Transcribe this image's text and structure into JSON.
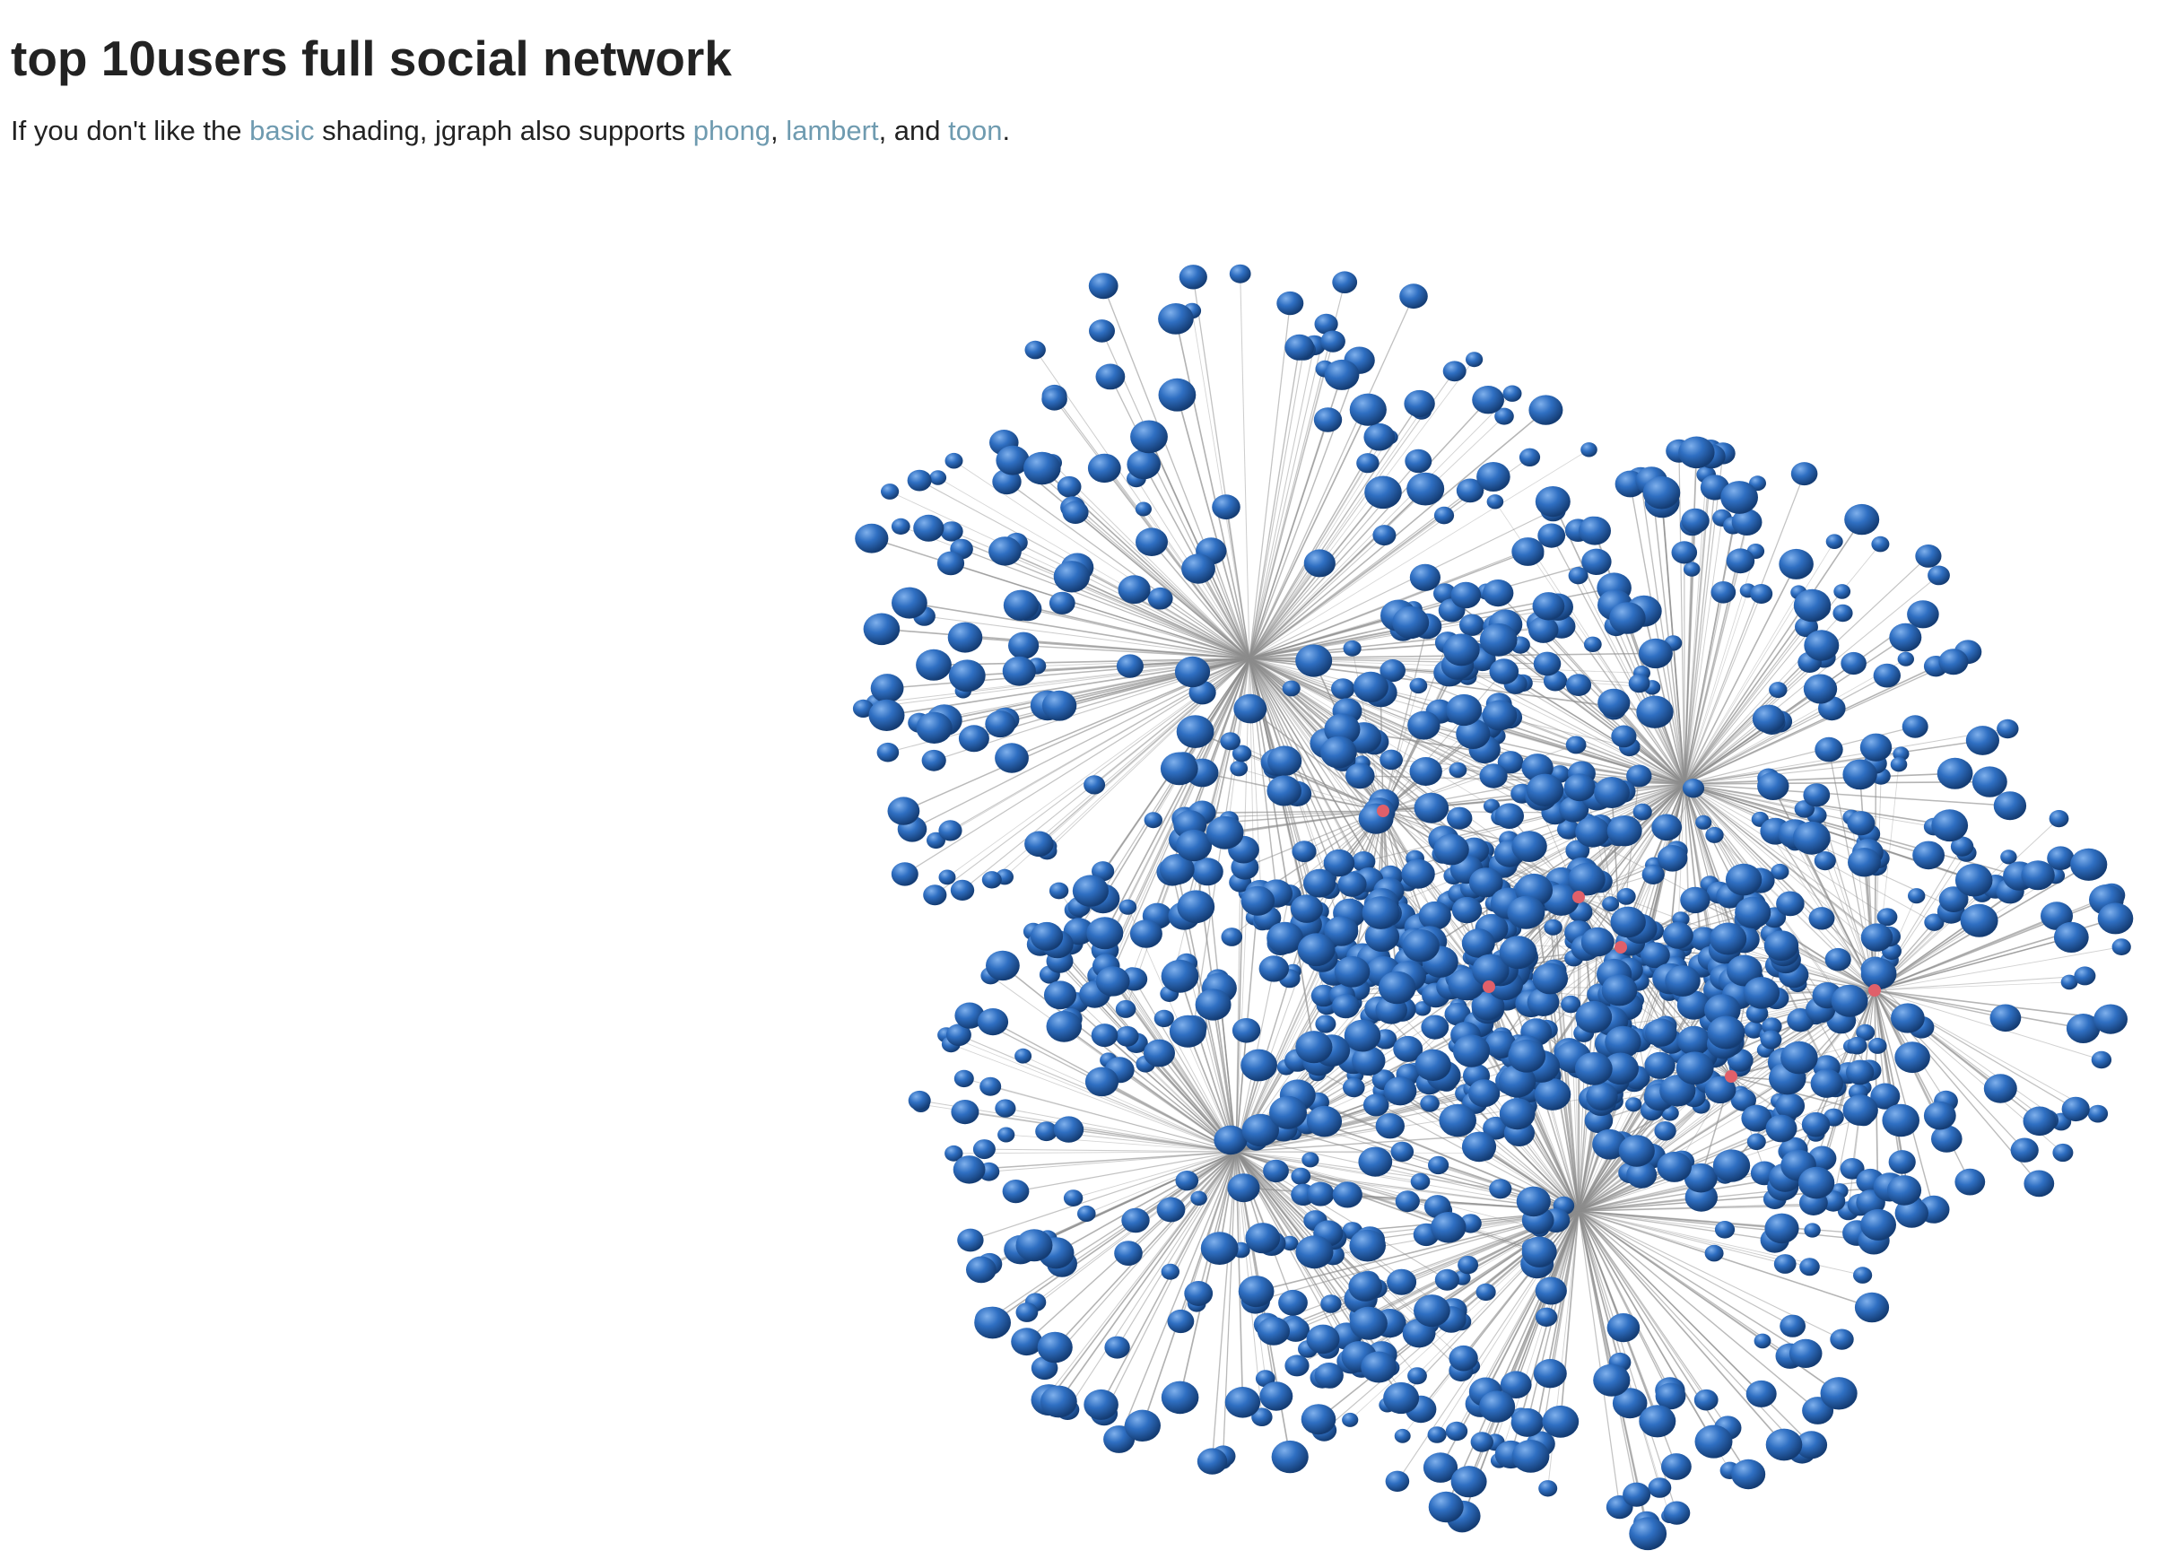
{
  "page": {
    "title": "top 10users full social network",
    "intro": {
      "before": "If you don't like the ",
      "link_basic": "basic",
      "middle1": " shading, jgraph also supports ",
      "link_phong": "phong",
      "sep1": ", ",
      "link_lambert": "lambert",
      "middle2": ", and ",
      "link_toon": "toon",
      "end": "."
    }
  },
  "graph": {
    "node_color": "#2f6fc2",
    "node_highlight": "#7fb0ec",
    "node_shadow": "#143c73",
    "edge_color": "#8c8c8c",
    "hub_color": "#e0606a",
    "hub_count": 10,
    "view": "3d-force-layout"
  }
}
